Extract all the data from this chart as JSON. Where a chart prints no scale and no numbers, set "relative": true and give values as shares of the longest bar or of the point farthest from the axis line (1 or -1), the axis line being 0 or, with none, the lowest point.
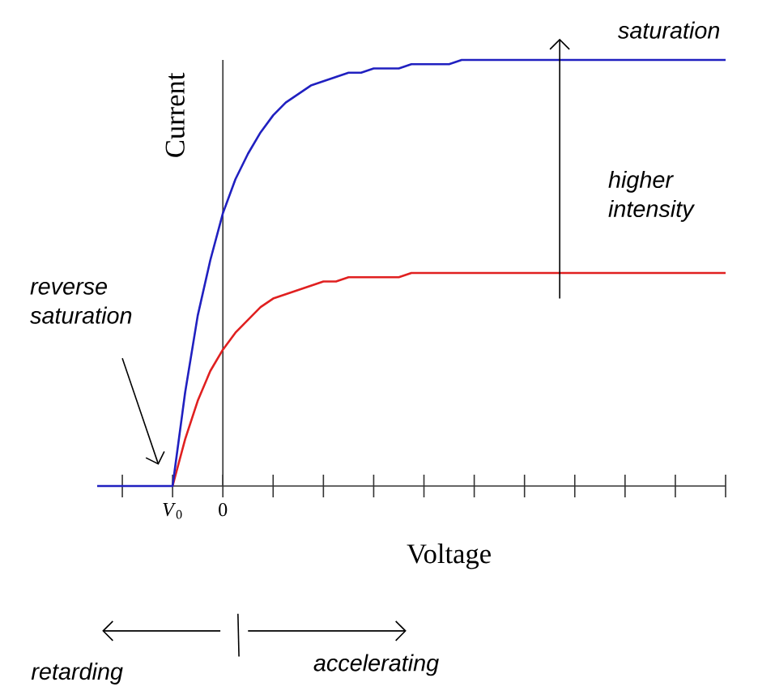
{
  "chart_data": {
    "type": "line",
    "relative": true,
    "xlabel": "Voltage",
    "ylabel": "Current",
    "categories": [
      null,
      null,
      null,
      null,
      null,
      null,
      "*V*$_{0}$",
      null,
      null,
      null,
      "0",
      null,
      null,
      null,
      null,
      null,
      null,
      null,
      null,
      null,
      null,
      null,
      null,
      null,
      null,
      null,
      null,
      null,
      null,
      null,
      null,
      null,
      null,
      null,
      null,
      null,
      null,
      null,
      null,
      null,
      null,
      null,
      null,
      null,
      null,
      null,
      null,
      null,
      null,
      null,
      null
    ],
    "series": [
      {
        "color": "#e02020",
        "values": [
          null,
          null,
          null,
          null,
          null,
          null,
          0,
          0.11,
          0.2,
          0.27,
          0.32,
          0.36,
          0.39,
          0.42,
          0.44,
          0.45,
          0.46,
          0.47,
          0.48,
          0.48,
          0.49,
          0.49,
          0.49,
          0.49,
          0.49,
          0.5,
          0.5,
          0.5,
          0.5,
          0.5,
          0.5,
          0.5,
          0.5,
          0.5,
          0.5,
          0.5,
          0.5,
          0.5,
          0.5,
          0.5,
          0.5,
          0.5,
          0.5,
          0.5,
          0.5,
          0.5,
          0.5,
          0.5,
          0.5,
          0.5,
          0.5
        ]
      },
      {
        "color": "#2020c0",
        "values": [
          0,
          0,
          0,
          0,
          0,
          0,
          0,
          0.22,
          0.4,
          0.53,
          0.64,
          0.72,
          0.78,
          0.83,
          0.87,
          0.9,
          0.92,
          0.94,
          0.95,
          0.96,
          0.97,
          0.97,
          0.98,
          0.98,
          0.98,
          0.99,
          0.99,
          0.99,
          0.99,
          1,
          1,
          1,
          1,
          1,
          1,
          1,
          1,
          1,
          1,
          1,
          1,
          1,
          1,
          1,
          1,
          1,
          1,
          1,
          1,
          1,
          1
        ]
      }
    ],
    "annotations": [
      "saturation",
      "higher intensity",
      "reverse saturation",
      "retarding",
      "accelerating"
    ]
  }
}
